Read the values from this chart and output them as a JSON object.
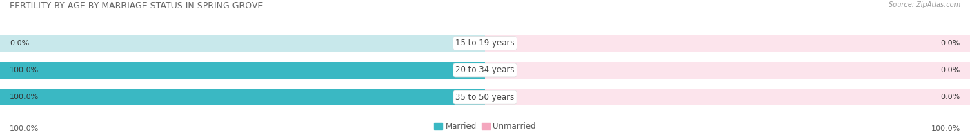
{
  "title": "FERTILITY BY AGE BY MARRIAGE STATUS IN SPRING GROVE",
  "source": "Source: ZipAtlas.com",
  "categories": [
    "15 to 19 years",
    "20 to 34 years",
    "35 to 50 years"
  ],
  "married_values": [
    0.0,
    100.0,
    100.0
  ],
  "unmarried_values": [
    0.0,
    0.0,
    0.0
  ],
  "married_color": "#3ab8c3",
  "unmarried_color": "#f4a7be",
  "bar_bg_color": "#e0e0e0",
  "bar_bg_married": "#c8e8eb",
  "bar_bg_unmarried": "#fce4ec",
  "bar_height": 0.62,
  "title_fontsize": 9.0,
  "label_fontsize": 8.5,
  "tick_fontsize": 8.0,
  "legend_fontsize": 8.5,
  "left_axis_label": "100.0%",
  "right_axis_label": "100.0%",
  "center_label_married_left": [
    "0.0%",
    "100.0%",
    "100.0%"
  ],
  "center_label_unmarried_right": [
    "0.0%",
    "0.0%",
    "0.0%"
  ],
  "figwidth": 14.06,
  "figheight": 1.96,
  "dpi": 100
}
